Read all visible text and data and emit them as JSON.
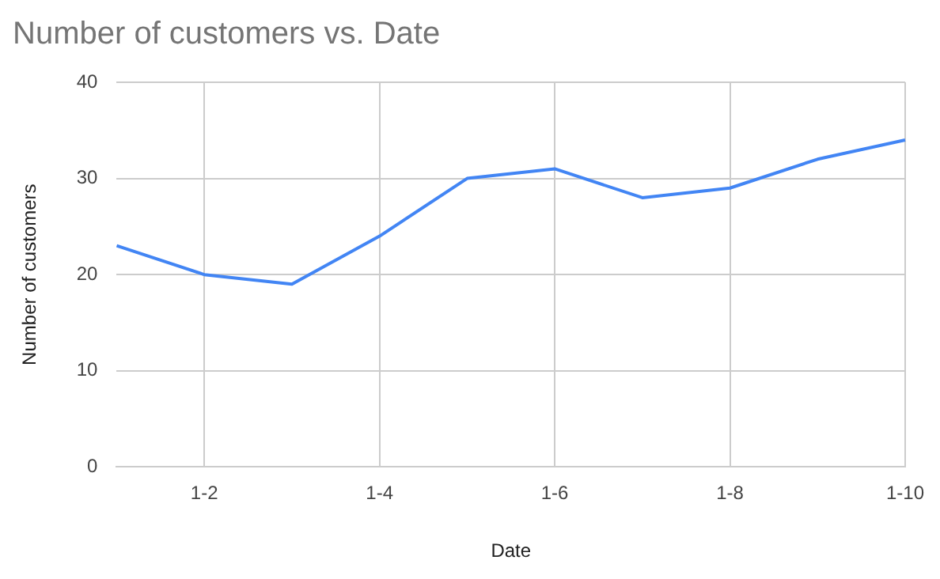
{
  "chart_data": {
    "type": "line",
    "title": "Number of customers vs. Date",
    "xlabel": "Date",
    "ylabel": "Number of customers",
    "categories": [
      null,
      "1-2",
      null,
      "1-4",
      null,
      "1-6",
      null,
      "1-8",
      null,
      "1-10"
    ],
    "series": [
      {
        "color": "#4285f4",
        "values": [
          23,
          20,
          19,
          24,
          30,
          31,
          28,
          29,
          32,
          34
        ]
      }
    ],
    "ylim": [
      0,
      40
    ],
    "yticks": [
      0,
      10,
      20,
      30,
      40
    ],
    "grid": true,
    "legend": false,
    "marker": "none",
    "line_style": "solid"
  }
}
